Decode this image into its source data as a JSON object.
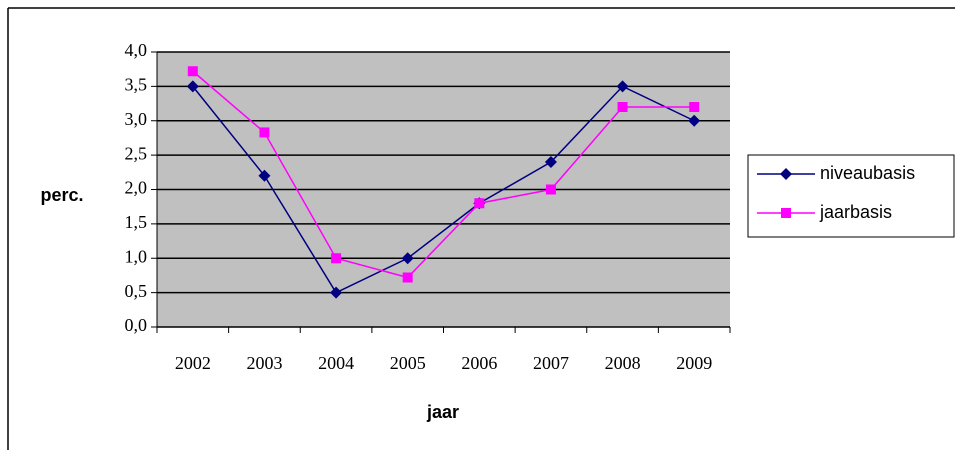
{
  "chart_data": {
    "type": "line",
    "x_label": "jaar",
    "y_label": "perc.",
    "categories": [
      "2002",
      "2003",
      "2004",
      "2005",
      "2006",
      "2007",
      "2008",
      "2009"
    ],
    "series": [
      {
        "name": "niveaubasis",
        "color": "#000080",
        "marker": "diamond",
        "values": [
          3.5,
          2.2,
          0.5,
          1.0,
          1.8,
          2.4,
          3.5,
          3.0
        ]
      },
      {
        "name": "jaarbasis",
        "color": "#ff00ff",
        "marker": "square",
        "values": [
          3.72,
          2.83,
          1.0,
          0.72,
          1.8,
          2.0,
          3.2,
          3.2
        ]
      }
    ],
    "ylim": [
      0,
      4
    ],
    "yticks": [
      {
        "value": 0,
        "label": "0,0"
      },
      {
        "value": 0.5,
        "label": "0,5"
      },
      {
        "value": 1,
        "label": "1,0"
      },
      {
        "value": 1.5,
        "label": "1,5"
      },
      {
        "value": 2,
        "label": "2,0"
      },
      {
        "value": 2.5,
        "label": "2,5"
      },
      {
        "value": 3,
        "label": "3,0"
      },
      {
        "value": 3.5,
        "label": "3,5"
      },
      {
        "value": 4,
        "label": "4,0"
      }
    ],
    "grid": true,
    "legend": "right",
    "plot_background": "#c0c0c0"
  }
}
